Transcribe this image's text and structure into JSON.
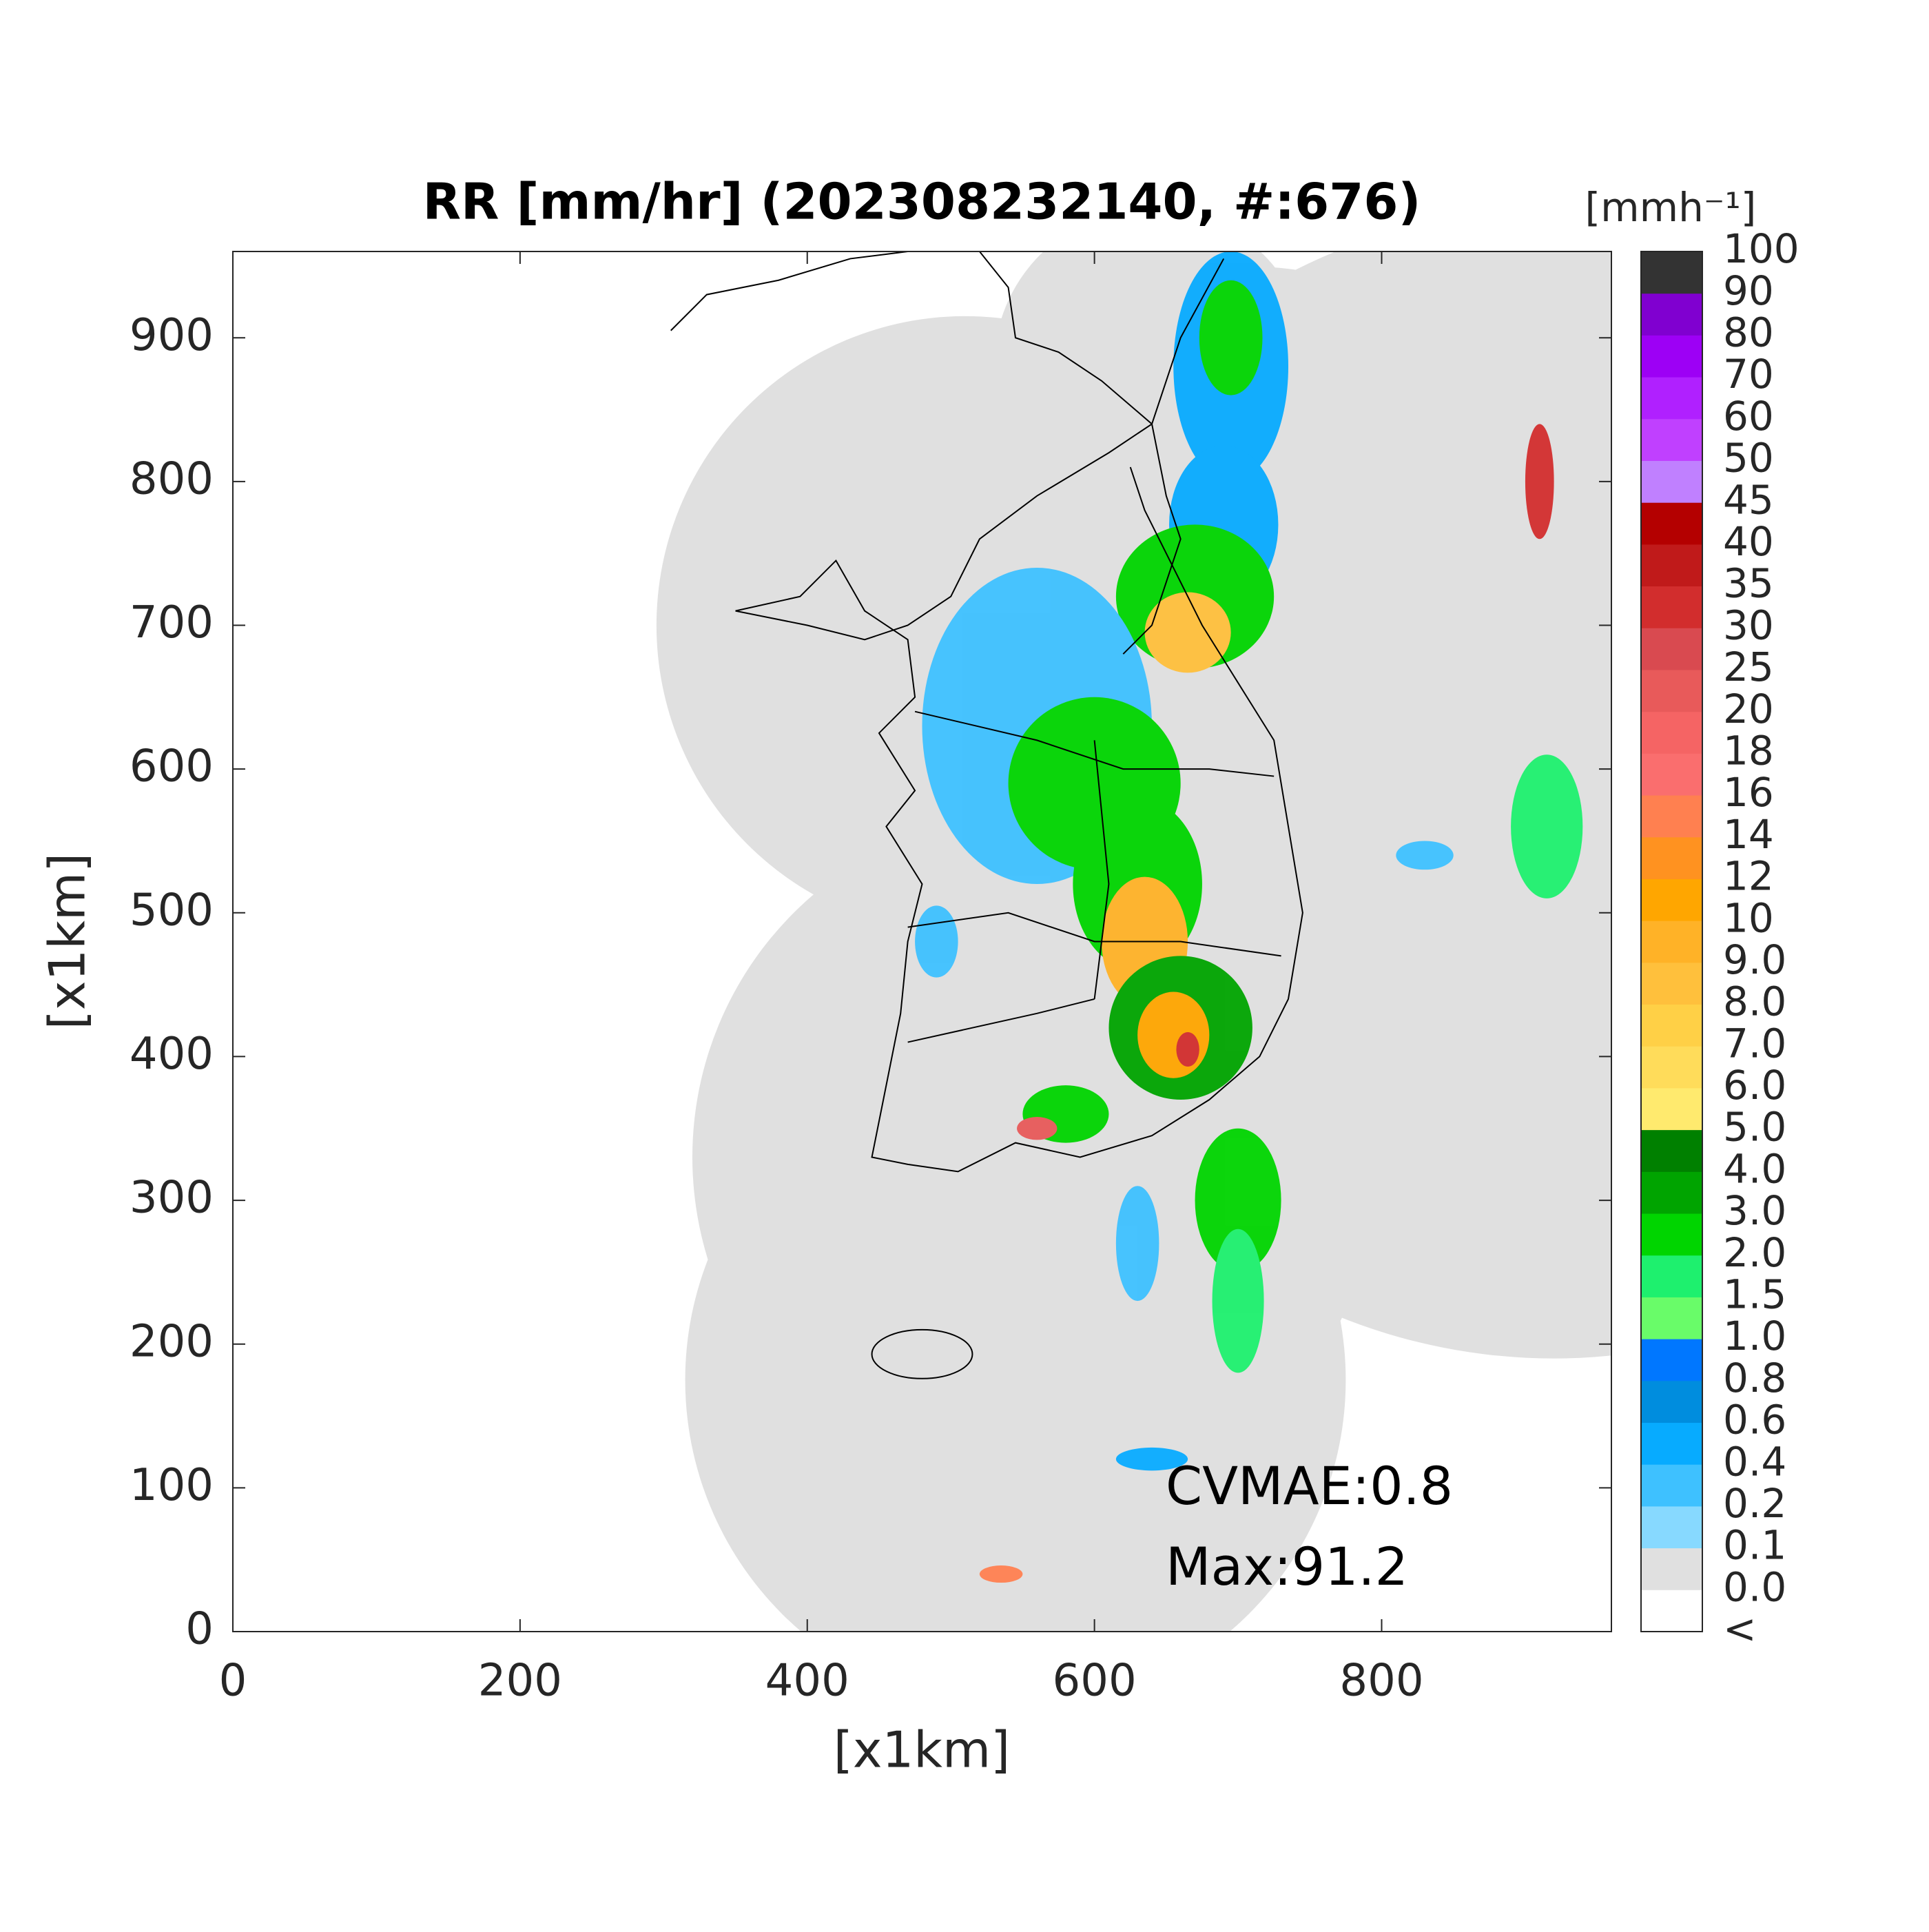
{
  "chart_data": {
    "type": "heatmap",
    "title": "RR [mm/hr] (202308232140, #:676)",
    "xlabel": "[x1km]",
    "ylabel": "[x1km]",
    "xlim": [
      0,
      960
    ],
    "ylim": [
      0,
      960
    ],
    "xticks": [
      0,
      200,
      400,
      600,
      800
    ],
    "yticks": [
      0,
      100,
      200,
      300,
      400,
      500,
      600,
      700,
      800,
      900
    ],
    "grid": false,
    "colorbar": {
      "label": "[mmh⁻¹]",
      "labels": [
        "<",
        "0.0",
        "0.1",
        "0.2",
        "0.4",
        "0.6",
        "0.8",
        "1.0",
        "1.5",
        "2.0",
        "3.0",
        "4.0",
        "5.0",
        "6.0",
        "7.0",
        "8.0",
        "9.0",
        "10",
        "12",
        "14",
        "16",
        "18",
        "20",
        "25",
        "30",
        "35",
        "40",
        "45",
        "50",
        "60",
        "70",
        "80",
        "90",
        "100"
      ],
      "colors": [
        "#ffffff",
        "#e0e0e0",
        "#87d9ff",
        "#3ec1ff",
        "#07abff",
        "#008dde",
        "#0077ff",
        "#69fc69",
        "#1ef06e",
        "#00d500",
        "#00a400",
        "#008000",
        "#ffea6e",
        "#ffdc5a",
        "#ffd046",
        "#ffc03c",
        "#ffb227",
        "#ffa600",
        "#ff9220",
        "#ff8050",
        "#fa6e6e",
        "#f56464",
        "#e85a5a",
        "#d94a50",
        "#d22d2d",
        "#c01a1a",
        "#b40000",
        "#c080ff",
        "#c040ff",
        "#b020ff",
        "#9d00f5",
        "#8000d0",
        "#333333"
      ]
    },
    "annotations": [
      "CVMAE:0.8",
      "Max:91.2"
    ]
  }
}
